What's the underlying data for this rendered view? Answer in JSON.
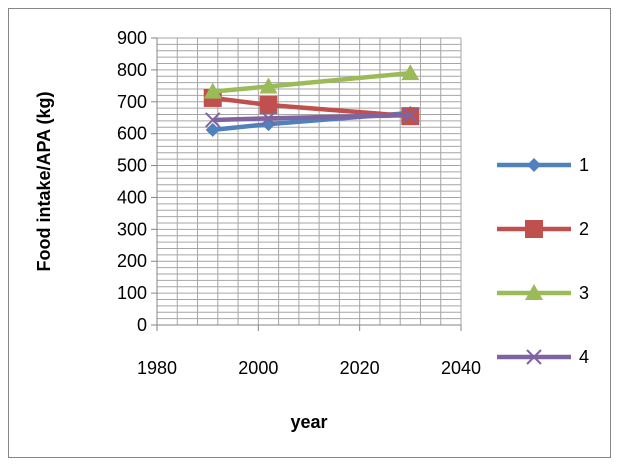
{
  "chart_data": {
    "type": "line",
    "title": "",
    "xlabel": "year",
    "ylabel": "Food intake/APA (kg)",
    "xlim": [
      1980,
      2040
    ],
    "ylim": [
      0,
      900
    ],
    "x_ticks": [
      1980,
      2000,
      2020,
      2040
    ],
    "y_ticks": [
      0,
      100,
      200,
      300,
      400,
      500,
      600,
      700,
      800,
      900
    ],
    "grid": true,
    "legend_position": "right",
    "series": [
      {
        "name": "1",
        "color": "#4f81bd",
        "marker": "diamond",
        "x": [
          1991,
          2002,
          2030
        ],
        "y": [
          612,
          630,
          665
        ]
      },
      {
        "name": "2",
        "color": "#c0504d",
        "marker": "square",
        "x": [
          1991,
          2002,
          2030
        ],
        "y": [
          712,
          690,
          655
        ]
      },
      {
        "name": "3",
        "color": "#9bbb59",
        "marker": "triangle",
        "x": [
          1991,
          2002,
          2030
        ],
        "y": [
          732,
          748,
          790
        ]
      },
      {
        "name": "4",
        "color": "#8064a2",
        "marker": "x",
        "x": [
          1991,
          2002,
          2030
        ],
        "y": [
          643,
          648,
          658
        ]
      }
    ]
  }
}
